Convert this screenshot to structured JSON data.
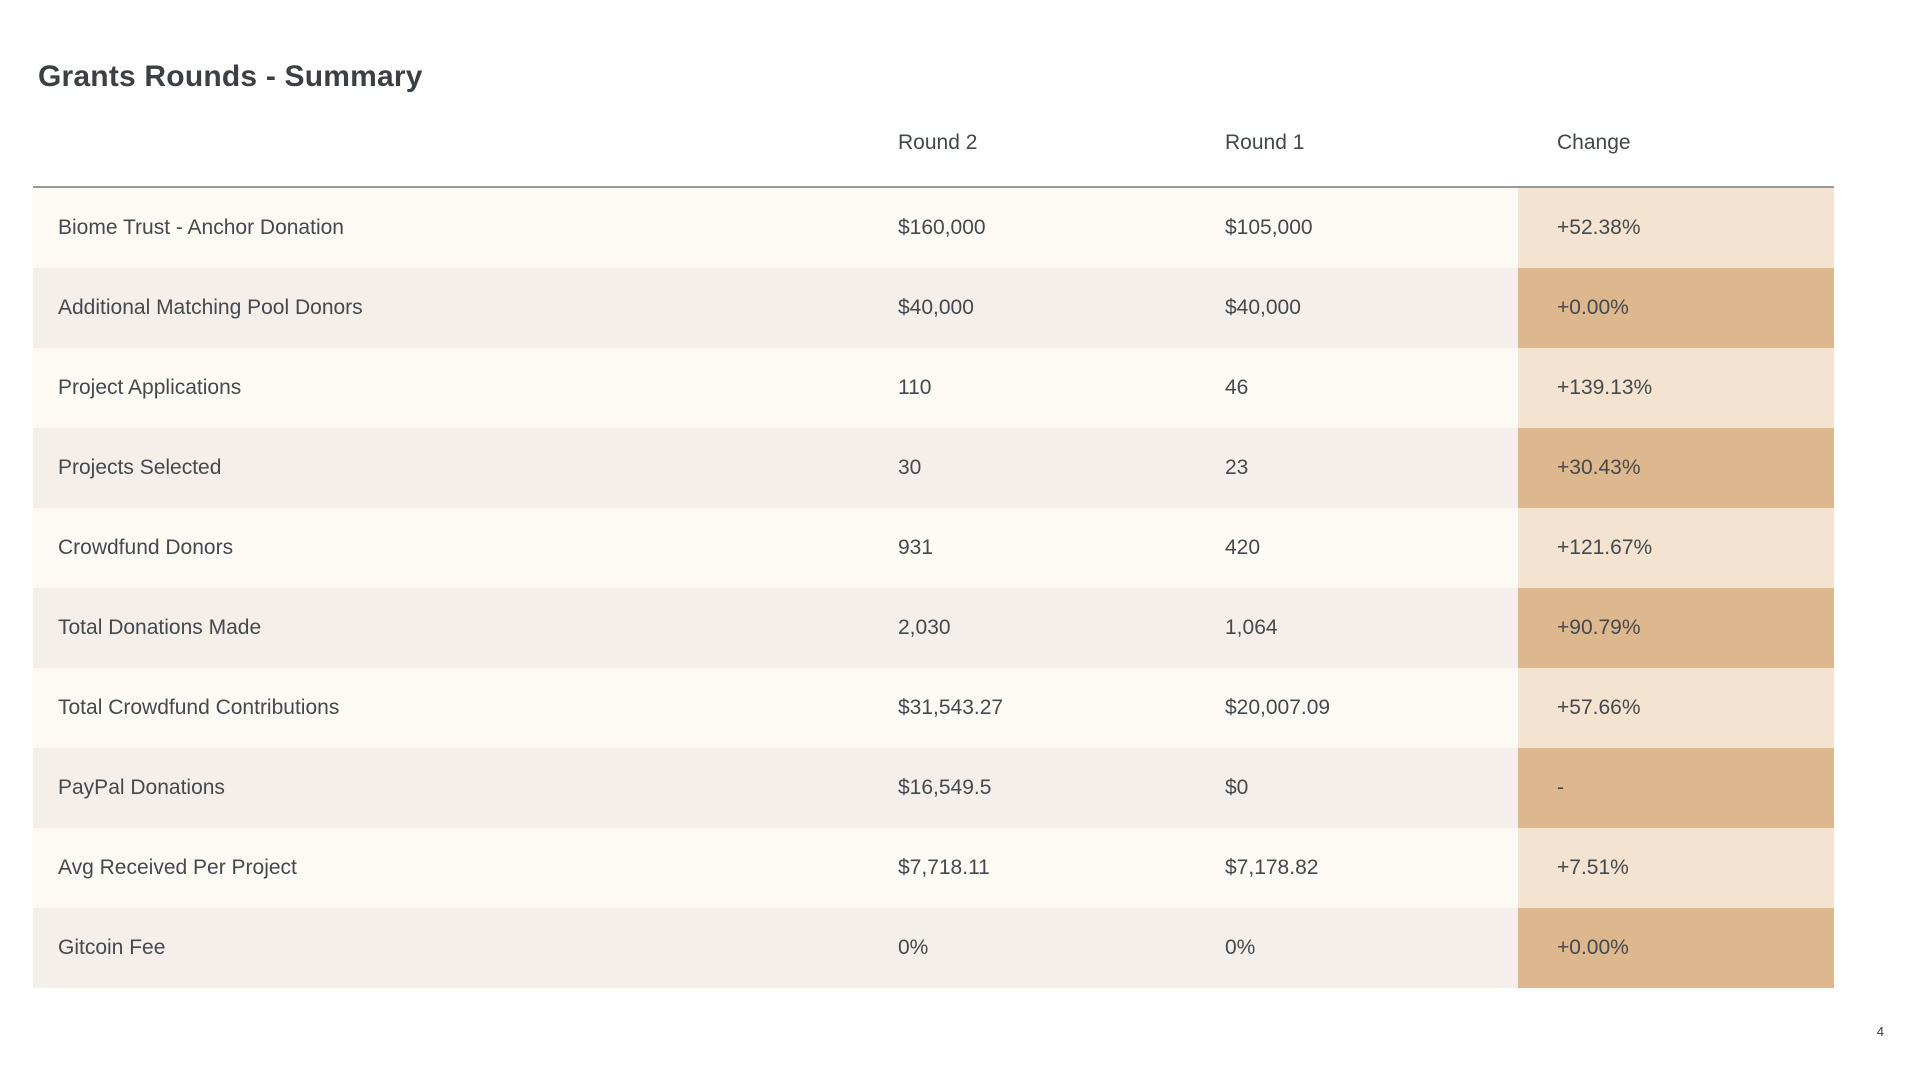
{
  "page": {
    "title": "Grants Rounds - Summary",
    "page_number": "4"
  },
  "colors": {
    "row_odd_bg": "#fdfaf5",
    "row_even_bg": "#f4efea",
    "change_light": "#f4e3d0",
    "change_dark": "#ddb88e",
    "separator": "#9a9a9a",
    "text": "#45494e"
  },
  "table": {
    "columns": {
      "metric": "",
      "round2": "Round 2",
      "round1": "Round 1",
      "change": "Change"
    },
    "rows": [
      {
        "label": "Biome Trust - Anchor Donation",
        "round2": "$160,000",
        "round1": "$105,000",
        "change": "+52.38%"
      },
      {
        "label": "Additional Matching Pool Donors",
        "round2": "$40,000",
        "round1": "$40,000",
        "change": "+0.00%"
      },
      {
        "label": "Project Applications",
        "round2": "110",
        "round1": "46",
        "change": "+139.13%"
      },
      {
        "label": "Projects Selected",
        "round2": "30",
        "round1": "23",
        "change": "+30.43%"
      },
      {
        "label": "Crowdfund Donors",
        "round2": "931",
        "round1": "420",
        "change": "+121.67%"
      },
      {
        "label": "Total Donations Made",
        "round2": "2,030",
        "round1": "1,064",
        "change": "+90.79%"
      },
      {
        "label": "Total Crowdfund Contributions",
        "round2": "$31,543.27",
        "round1": "$20,007.09",
        "change": "+57.66%"
      },
      {
        "label": "PayPal Donations",
        "round2": "$16,549.5",
        "round1": "$0",
        "change": "-"
      },
      {
        "label": "Avg Received Per Project",
        "round2": "$7,718.11",
        "round1": "$7,178.82",
        "change": "+7.51%"
      },
      {
        "label": "Gitcoin Fee",
        "round2": "0%",
        "round1": "0%",
        "change": "+0.00%"
      }
    ]
  }
}
